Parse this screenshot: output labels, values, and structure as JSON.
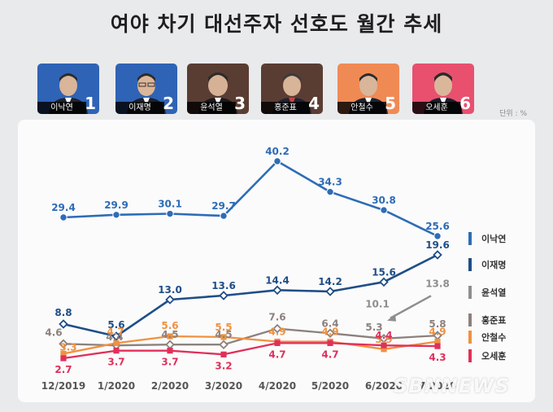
{
  "title": "여야 차기 대선주자 선호도 월간 추세",
  "unit": "단위 : %",
  "watermark": "SBNNEWS",
  "candidates": [
    {
      "name": "이낙연",
      "num": "1",
      "bg": "#2f63b6"
    },
    {
      "name": "이재명",
      "num": "2",
      "bg": "#2f63b6"
    },
    {
      "name": "윤석열",
      "num": "3",
      "bg": "#5a3d32"
    },
    {
      "name": "홍준표",
      "num": "4",
      "bg": "#5a3d32"
    },
    {
      "name": "안철수",
      "num": "5",
      "bg": "#f08a54"
    },
    {
      "name": "오세훈",
      "num": "6",
      "bg": "#e8506e"
    }
  ],
  "chart_data": {
    "type": "line",
    "title": "여야 차기 대선주자 선호도 월간 추세",
    "categories": [
      "12/2019",
      "1/2020",
      "2/2020",
      "3/2020",
      "4/2020",
      "5/2020",
      "6/2020",
      "7/2020"
    ],
    "ylabel": "%",
    "ylim": [
      0,
      42
    ],
    "grid": false,
    "legend": "right",
    "series": [
      {
        "name": "이낙연",
        "color": "#2e6cb5",
        "marker": "circle",
        "values": [
          29.4,
          29.9,
          30.1,
          29.7,
          40.2,
          34.3,
          30.8,
          25.6
        ],
        "labels": [
          "29.4",
          "29.9",
          "30.1",
          "29.7",
          "40.2",
          "34.3",
          "30.8",
          "25.6"
        ]
      },
      {
        "name": "이재명",
        "color": "#1f4e86",
        "marker": "diamond",
        "values": [
          8.8,
          5.6,
          13.0,
          13.6,
          14.4,
          14.2,
          15.6,
          19.6
        ],
        "labels": [
          "8.8",
          "5.6",
          "13.0",
          "13.6",
          "14.4",
          "14.2",
          "15.6",
          "19.6"
        ]
      },
      {
        "name": "윤석열",
        "color": "#8e8e8e",
        "marker": "diamond",
        "values": [
          null,
          null,
          null,
          null,
          null,
          null,
          10.1,
          13.8
        ],
        "labels": [
          "",
          "",
          "",
          "",
          "",
          "",
          "10.1",
          "13.8"
        ]
      },
      {
        "name": "홍준표",
        "color": "#8c817d",
        "marker": "diamond",
        "values": [
          4.6,
          4.4,
          4.5,
          4.5,
          7.6,
          6.4,
          5.3,
          5.8
        ],
        "labels": [
          "4.6",
          "4.4",
          "4.5",
          "4.5",
          "7.6",
          "6.4",
          "5.3",
          "5.8"
        ]
      },
      {
        "name": "안철수",
        "color": "#f0913f",
        "marker": "square",
        "values": [
          3.3,
          4.7,
          5.6,
          5.5,
          4.9,
          4.9,
          3.9,
          4.9
        ],
        "labels": [
          "3.3",
          "4.7",
          "5.6",
          "5.5",
          "4.9",
          "4.9",
          "3.9",
          "4.9"
        ]
      },
      {
        "name": "오세훈",
        "color": "#e0305a",
        "marker": "square",
        "values": [
          2.7,
          3.7,
          3.7,
          3.2,
          4.7,
          4.7,
          4.4,
          4.3
        ],
        "labels": [
          "2.7",
          "3.7",
          "3.7",
          "3.2",
          "4.7",
          "4.7",
          "4.4",
          "4.3"
        ]
      }
    ]
  }
}
